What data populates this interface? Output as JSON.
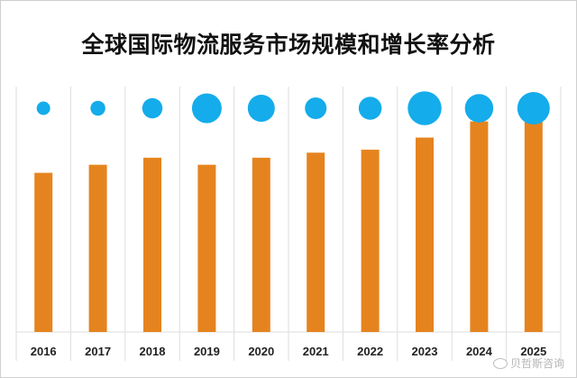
{
  "chart_data": {
    "type": "bar",
    "title": "全球国际物流服务市场规模和增长率分析",
    "categories": [
      "2016",
      "2017",
      "2018",
      "2019",
      "2020",
      "2021",
      "2022",
      "2023",
      "2024",
      "2025"
    ],
    "series": [
      {
        "kind": "bar",
        "color": "#E5841F",
        "values": [
          158,
          166,
          173,
          166,
          173,
          178,
          181,
          193,
          209,
          222
        ]
      },
      {
        "kind": "bubble",
        "color": "#14ACEB",
        "values": [
          1.0,
          1.1,
          1.5,
          2.2,
          2.0,
          1.6,
          1.7,
          2.5,
          2.1,
          2.4
        ]
      }
    ],
    "ylim": [
      0,
      240
    ],
    "grid": true,
    "legend": "none"
  },
  "watermark": {
    "text": "贝哲斯咨询",
    "icon": "weibo-icon"
  }
}
